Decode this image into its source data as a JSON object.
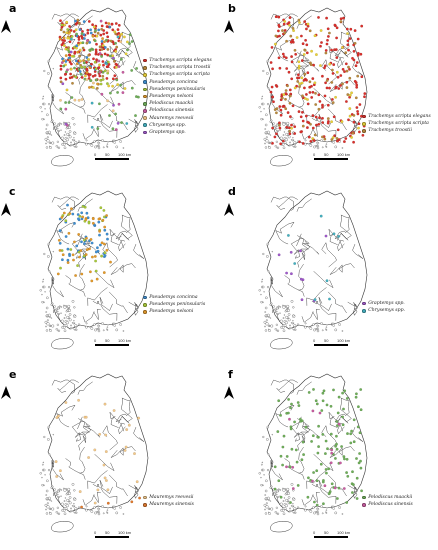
{
  "panels": [
    {
      "letter": "a",
      "legend": [
        {
          "label": "Trachemys scripta elegans",
          "color": "#d9302c"
        },
        {
          "label": "Trachemys scripta troostii",
          "color": "#b98a3e"
        },
        {
          "label": "Trachemys scripta scripta",
          "color": "#e8d03a"
        },
        {
          "label": "Pseudemys concinna",
          "color": "#3f8fd2"
        },
        {
          "label": "Pseudemys peninsularis",
          "color": "#a8c83a"
        },
        {
          "label": "Pseudemys nelsoni",
          "color": "#e39a2b"
        },
        {
          "label": "Pelodiscus maackii",
          "color": "#6fae5a"
        },
        {
          "label": "Pelodiscus sinensis",
          "color": "#c85ca0"
        },
        {
          "label": "Mauremys reevesii",
          "color": "#f2c88a"
        },
        {
          "label": "Chrysemys spp.",
          "color": "#44b0c0"
        },
        {
          "label": "Graptemys spp.",
          "color": "#a05acb"
        }
      ],
      "scale": {
        "ticks": [
          "0",
          "50",
          "100 km"
        ]
      }
    },
    {
      "letter": "b",
      "legend": [
        {
          "label": "Trachemys scripta elegans",
          "color": "#d9302c"
        },
        {
          "label": "Trachemys scripta scripta",
          "color": "#e8d03a"
        },
        {
          "label": "Trachemys troostii",
          "color": "#b98a3e"
        }
      ],
      "scale": {
        "ticks": [
          "0",
          "50",
          "100 km"
        ]
      }
    },
    {
      "letter": "c",
      "legend": [
        {
          "label": "Pseudemys concinna",
          "color": "#3f8fd2"
        },
        {
          "label": "Pseudemys peninsularis",
          "color": "#a8c83a"
        },
        {
          "label": "Pseudemys nelsoni",
          "color": "#e39a2b"
        }
      ],
      "scale": {
        "ticks": [
          "0",
          "50",
          "100 km"
        ]
      }
    },
    {
      "letter": "d",
      "legend": [
        {
          "label": "Graptemys spp.",
          "color": "#a05acb"
        },
        {
          "label": "Chrysemys spp.",
          "color": "#44b0c0"
        }
      ],
      "scale": {
        "ticks": [
          "0",
          "50",
          "100 km"
        ]
      }
    },
    {
      "letter": "e",
      "legend": [
        {
          "label": "Mauremys reevesii",
          "color": "#f2c88a"
        },
        {
          "label": "Mauremys sinensis",
          "color": "#e07a2e"
        }
      ],
      "scale": {
        "ticks": [
          "0",
          "50",
          "100 km"
        ]
      }
    },
    {
      "letter": "f",
      "legend": [
        {
          "label": "Pelodiscus maackii",
          "color": "#6fae5a"
        },
        {
          "label": "Pelodiscus sinensis",
          "color": "#c85ca0"
        }
      ],
      "scale": {
        "ticks": [
          "0",
          "50",
          "100 km"
        ]
      }
    }
  ]
}
